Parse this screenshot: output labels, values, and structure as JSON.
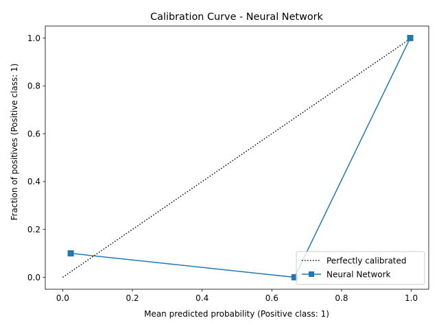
{
  "chart_data": {
    "type": "line",
    "title": "Calibration Curve - Neural Network",
    "xlabel": "Mean predicted probability (Positive class: 1)",
    "ylabel": "Fraction of positives (Positive class: 1)",
    "xlim": [
      -0.05,
      1.05
    ],
    "ylim": [
      -0.05,
      1.05
    ],
    "xticks": [
      0.0,
      0.2,
      0.4,
      0.6,
      0.8,
      1.0
    ],
    "yticks": [
      0.0,
      0.2,
      0.4,
      0.6,
      0.8,
      1.0
    ],
    "xtick_labels": [
      "0.0",
      "0.2",
      "0.4",
      "0.6",
      "0.8",
      "1.0"
    ],
    "ytick_labels": [
      "0.0",
      "0.2",
      "0.4",
      "0.6",
      "0.8",
      "1.0"
    ],
    "grid": false,
    "legend_position": "lower-right",
    "series": [
      {
        "name": "Perfectly calibrated",
        "style": "dotted",
        "color": "#000000",
        "marker": "none",
        "x": [
          0.0,
          1.0
        ],
        "y": [
          0.0,
          1.0
        ]
      },
      {
        "name": "Neural Network",
        "style": "solid",
        "color": "#1f77b4",
        "marker": "square",
        "x": [
          0.023,
          0.665,
          0.997
        ],
        "y": [
          0.1,
          0.0,
          1.0
        ]
      }
    ]
  }
}
